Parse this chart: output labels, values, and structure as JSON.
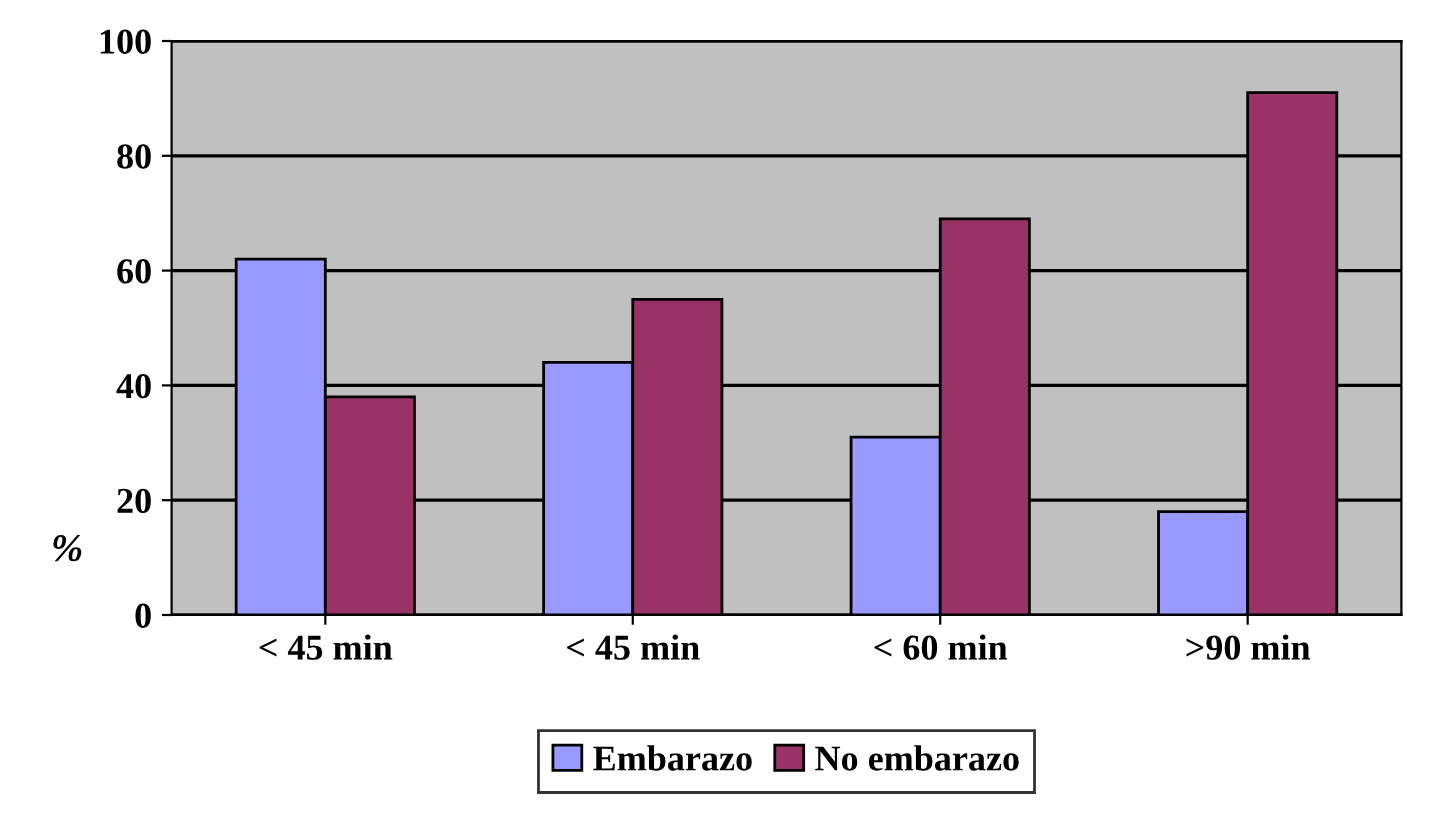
{
  "chart_data": {
    "type": "bar",
    "ylabel": "%",
    "categories": [
      "< 45 min",
      "< 45 min",
      "< 60 min",
      ">90 min"
    ],
    "series": [
      {
        "name": "Embarazo",
        "color": "#9999ff",
        "values": [
          62,
          44,
          31,
          18
        ]
      },
      {
        "name": "No embarazo",
        "color": "#993366",
        "values": [
          38,
          55,
          69,
          91
        ]
      }
    ],
    "ylim": [
      0,
      100
    ],
    "yticks": [
      0,
      20,
      40,
      60,
      80,
      100
    ],
    "grid": "y",
    "legend": "bottom"
  }
}
